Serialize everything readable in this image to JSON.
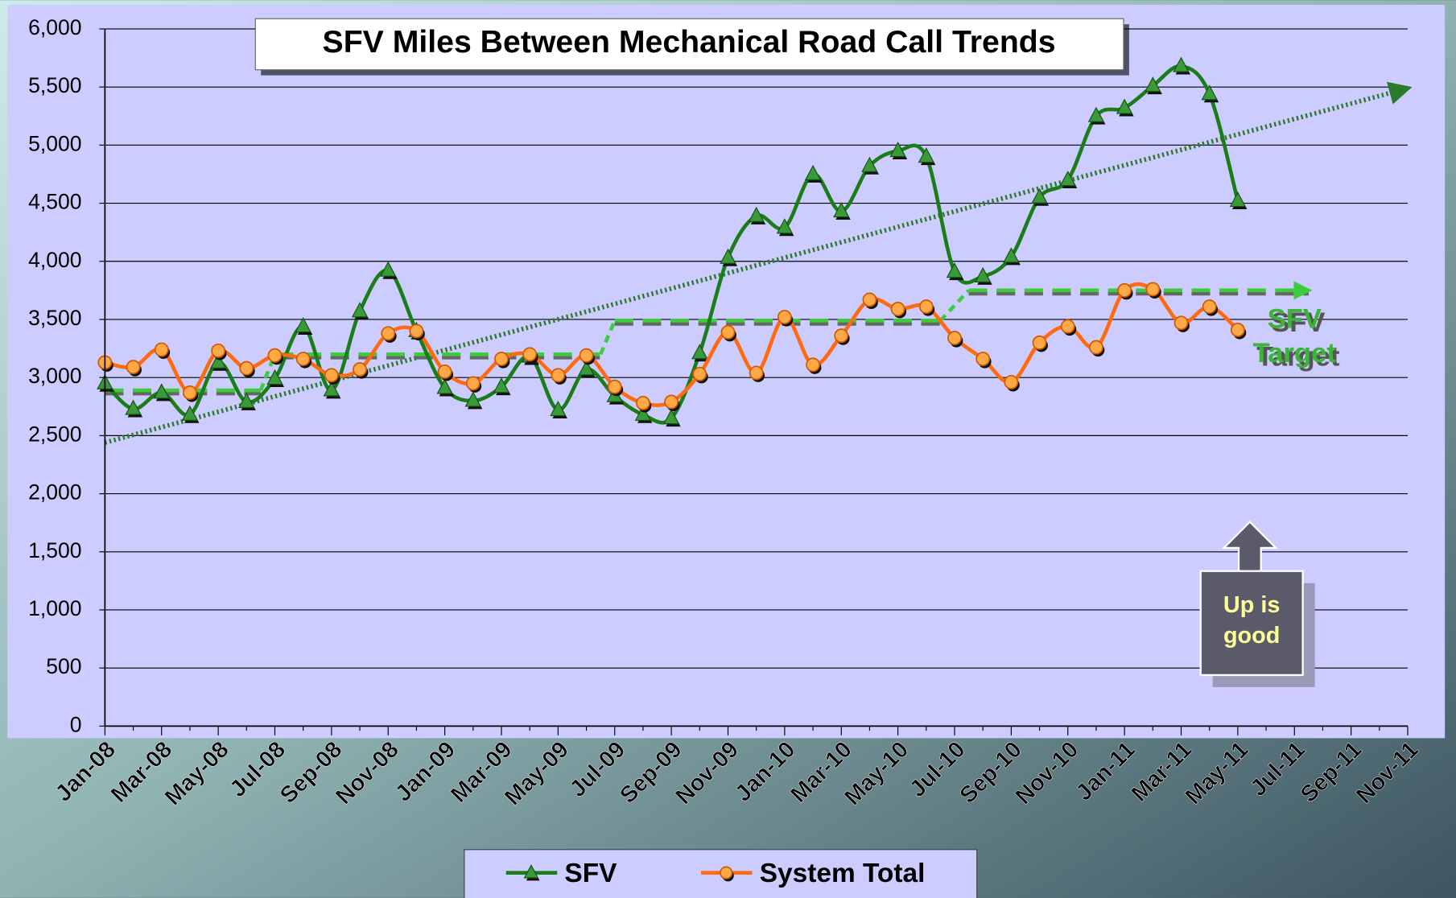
{
  "chart_data": {
    "type": "line",
    "title": "SFV Miles Between Mechanical Road Call Trends",
    "categories": [
      "Jan-08",
      null,
      "Mar-08",
      null,
      "May-08",
      null,
      "Jul-08",
      null,
      "Sep-08",
      null,
      "Nov-08",
      null,
      "Jan-09",
      null,
      "Mar-09",
      null,
      "May-09",
      null,
      "Jul-09",
      null,
      "Sep-09",
      null,
      "Nov-09",
      null,
      "Jan-10",
      null,
      "Mar-10",
      null,
      "May-10",
      null,
      "Jul-10",
      null,
      "Sep-10",
      null,
      "Nov-10",
      null,
      "Jan-11",
      null,
      "Mar-11",
      null,
      "May-11",
      null,
      "Jul-11",
      null,
      "Sep-11",
      null,
      "Nov-11"
    ],
    "series": [
      {
        "name": "SFV",
        "color": "#1a7d1a",
        "marker": "triangle",
        "values": [
          2950,
          2730,
          2870,
          2680,
          3130,
          2790,
          2990,
          3440,
          2890,
          3570,
          3920,
          3400,
          2910,
          2800,
          2920,
          3180,
          2720,
          3070,
          2840,
          2680,
          2650,
          3210,
          4030,
          4390,
          4290,
          4750,
          4430,
          4820,
          4950,
          4900,
          3910,
          3870,
          4040,
          4550,
          4700,
          5250,
          5320,
          5510,
          5680,
          5440,
          4520,
          null,
          null,
          null,
          null,
          null,
          null
        ]
      },
      {
        "name": "System Total",
        "color": "#ff6a10",
        "marker": "circle",
        "values": [
          3130,
          3090,
          3240,
          2870,
          3230,
          3080,
          3190,
          3160,
          3020,
          3070,
          3380,
          3400,
          3050,
          2950,
          3160,
          3200,
          3020,
          3190,
          2920,
          2780,
          2790,
          3030,
          3390,
          3040,
          3520,
          3110,
          3360,
          3670,
          3590,
          3610,
          3340,
          3160,
          2960,
          3300,
          3440,
          3260,
          3750,
          3760,
          3470,
          3610,
          3410,
          null,
          null,
          null,
          null,
          null,
          null
        ]
      }
    ],
    "trendline": [
      2440,
      5490
    ],
    "target_levels": [
      2890,
      3200,
      3490,
      3750
    ],
    "target_label": [
      "SFV",
      "Target"
    ],
    "annotation": [
      "Up is",
      "good"
    ],
    "ylim": [
      0,
      6000
    ],
    "yticks": [
      0,
      500,
      {
        "value": 1000,
        "label": "1,000"
      },
      {
        "value": 1500,
        "label": "1,500"
      },
      {
        "value": 2000,
        "label": "2,000"
      },
      {
        "value": 2500,
        "label": "2,500"
      },
      {
        "value": 3000,
        "label": "3,000"
      },
      {
        "value": 3500,
        "label": "3,500"
      },
      {
        "value": 4000,
        "label": "4,000"
      },
      {
        "value": 4500,
        "label": "4,500"
      },
      {
        "value": 5000,
        "label": "5,000"
      },
      {
        "value": 5500,
        "label": "5,500"
      },
      {
        "value": 6000,
        "label": "6,000"
      }
    ],
    "grid": true,
    "legend": "bottom"
  }
}
